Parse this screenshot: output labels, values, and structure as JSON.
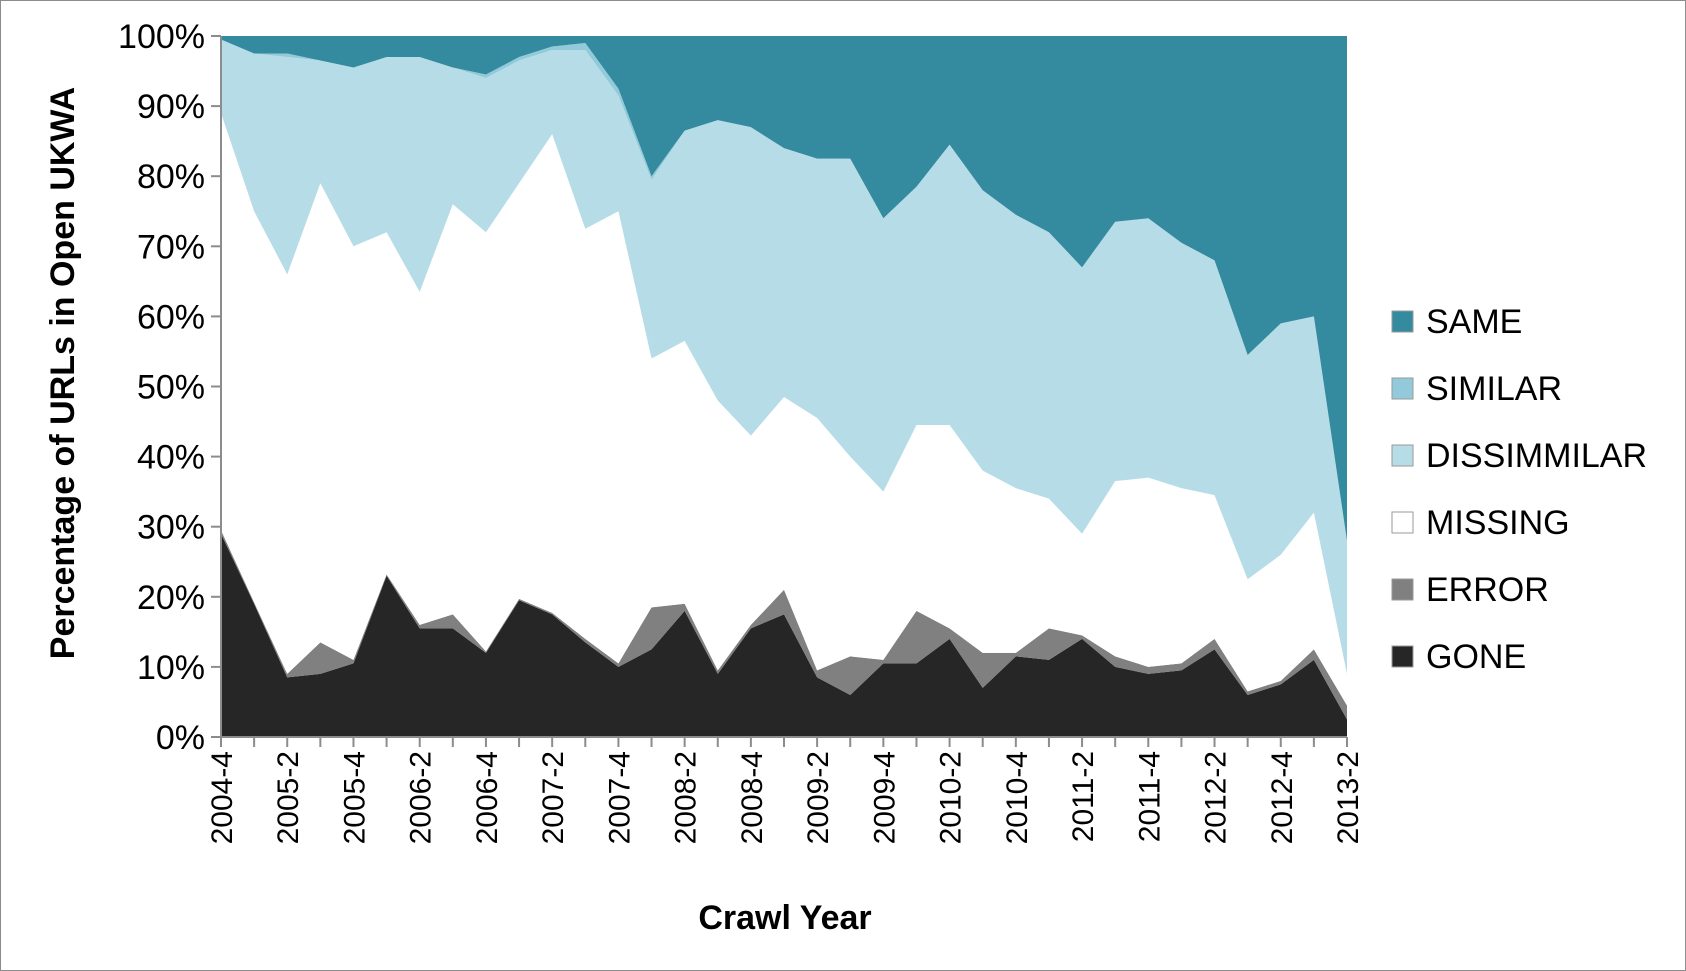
{
  "chart_data": {
    "type": "area",
    "stacked": true,
    "percent": true,
    "xlabel": "Crawl Year",
    "ylabel": "Percentage of URLs in Open UKWA",
    "ylim": [
      0,
      100
    ],
    "y_ticks": [
      "0%",
      "10%",
      "20%",
      "30%",
      "40%",
      "50%",
      "60%",
      "70%",
      "80%",
      "90%",
      "100%"
    ],
    "x_tick_labels": [
      "2004-4",
      "2005-2",
      "2005-4",
      "2006-2",
      "2006-4",
      "2007-2",
      "2007-4",
      "2008-2",
      "2008-4",
      "2009-2",
      "2009-4",
      "2010-2",
      "2010-4",
      "2011-2",
      "2011-4",
      "2012-2",
      "2012-4",
      "2013-2"
    ],
    "categories": [
      "2004-4",
      "2005-1",
      "2005-2",
      "2005-3",
      "2005-4",
      "2006-1",
      "2006-2",
      "2006-3",
      "2006-4",
      "2007-1",
      "2007-2",
      "2007-3",
      "2007-4",
      "2008-1",
      "2008-2",
      "2008-3",
      "2008-4",
      "2009-1",
      "2009-2",
      "2009-3",
      "2009-4",
      "2010-1",
      "2010-2",
      "2010-3",
      "2010-4",
      "2011-1",
      "2011-2",
      "2011-3",
      "2011-4",
      "2012-1",
      "2012-2",
      "2012-3",
      "2012-4",
      "2013-1",
      "2013-2"
    ],
    "legend_position": "right",
    "series": [
      {
        "name": "GONE",
        "color": "#262626",
        "values": [
          29,
          19,
          8.5,
          9,
          10.5,
          23,
          15.5,
          15.5,
          12,
          19.5,
          17.5,
          13.5,
          10,
          12.5,
          18,
          9,
          15.5,
          17.5,
          8.5,
          6,
          10.5,
          10.5,
          14,
          7,
          11.5,
          11,
          14,
          10,
          9,
          9.5,
          12.5,
          6,
          7.5,
          11,
          2.5
        ]
      },
      {
        "name": "ERROR",
        "color": "#808080",
        "values": [
          0.5,
          0.2,
          0.5,
          4.5,
          0.5,
          0.2,
          0.5,
          2,
          0.2,
          0.2,
          0.2,
          0.5,
          0.5,
          6,
          1,
          0.5,
          0.5,
          3.5,
          1,
          5.5,
          0.5,
          7.5,
          1.5,
          5,
          0.5,
          4.5,
          0.5,
          1.5,
          1,
          1,
          1.5,
          0.5,
          0.5,
          1.5,
          2
        ]
      },
      {
        "name": "MISSING",
        "color": "#ffffff",
        "values": [
          59.5,
          55.8,
          57,
          65.5,
          59,
          48.8,
          47.5,
          58.5,
          59.8,
          59.3,
          68.3,
          58.5,
          64.5,
          35.5,
          37.5,
          38.5,
          27,
          27.5,
          36,
          28.5,
          24,
          26.5,
          29,
          26,
          23.5,
          18.5,
          14.5,
          25,
          27,
          25,
          20.5,
          16,
          18,
          19.5,
          4.5
        ]
      },
      {
        "name": "DISSIMMILAR",
        "color": "#b6dde7",
        "values": [
          10.5,
          22.5,
          31,
          17.5,
          25.5,
          25,
          33.5,
          19.5,
          22,
          17.5,
          12,
          25.5,
          16.5,
          25.5,
          30,
          40,
          44,
          35.5,
          37,
          42.5,
          39,
          34,
          40,
          40,
          39,
          38,
          38,
          37,
          37,
          35,
          33.5,
          32,
          33,
          28,
          19
        ]
      },
      {
        "name": "SIMILAR",
        "color": "#92cadb",
        "values": [
          0,
          0,
          0.5,
          0,
          0,
          0,
          0,
          0,
          0.5,
          0.5,
          0.5,
          1,
          1,
          0.5,
          0,
          0,
          0,
          0,
          0,
          0,
          0,
          0,
          0,
          0,
          0,
          0,
          0,
          0,
          0,
          0,
          0,
          0,
          0,
          0,
          0
        ]
      },
      {
        "name": "SAME",
        "color": "#348a9f",
        "values": [
          0.5,
          2.5,
          2.5,
          3.5,
          4.5,
          3,
          3,
          4.5,
          5.5,
          3,
          1.5,
          1,
          7.5,
          20,
          13.5,
          12,
          13,
          16,
          17.5,
          17.5,
          26,
          21.5,
          15.5,
          22,
          25.5,
          28,
          33,
          26.5,
          26,
          29.5,
          32,
          45.5,
          41,
          40,
          72
        ]
      }
    ]
  }
}
